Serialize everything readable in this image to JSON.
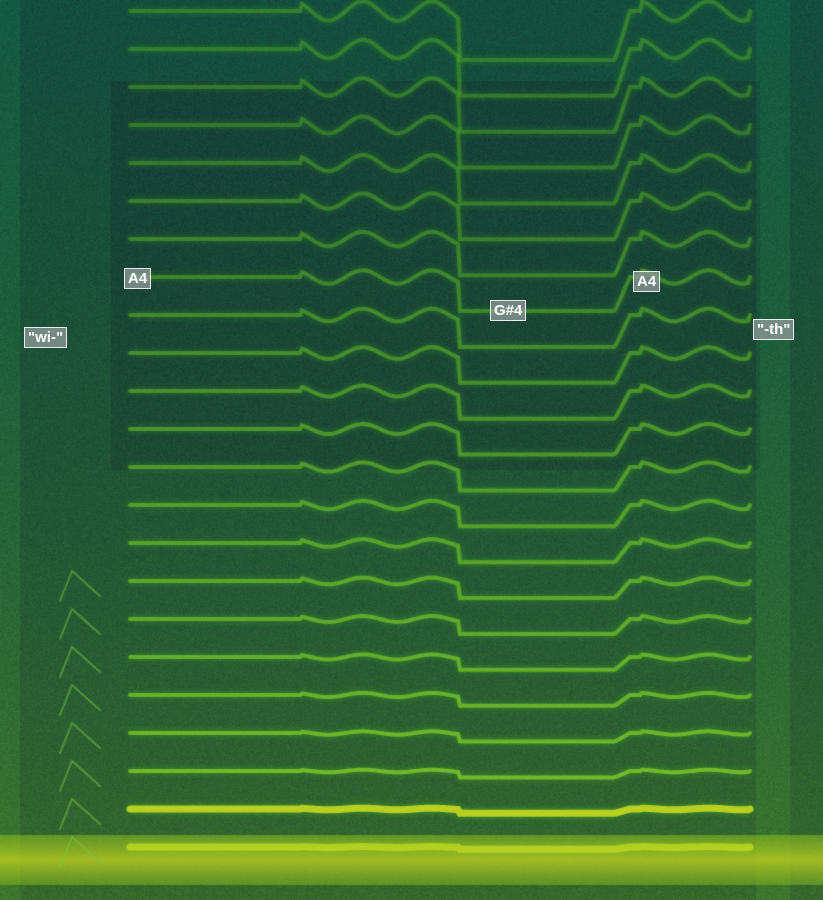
{
  "annotations": {
    "wi": "\"wi-\"",
    "a4_first": "A4",
    "gsharp4": "G#4",
    "a4_second": "A4",
    "th": "\"-th\""
  },
  "colors": {
    "background": "#0d2a2a",
    "harmonic": "#3fa028",
    "low_band": "#c8d820"
  }
}
